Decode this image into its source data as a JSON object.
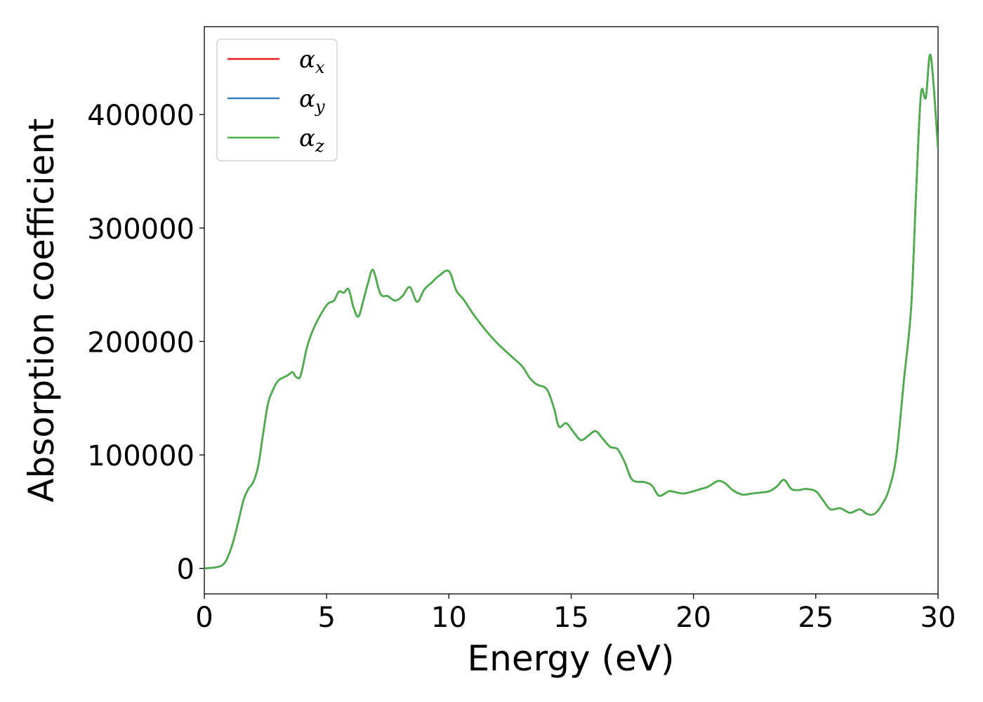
{
  "chart_data": {
    "type": "line",
    "xlabel": "Energy (eV)",
    "ylabel": "Absorption coefficient",
    "xlim": [
      0,
      30
    ],
    "ylim": [
      -22500,
      477500
    ],
    "xticks": [
      0,
      5,
      10,
      15,
      20,
      25,
      30
    ],
    "yticks": [
      0,
      100000,
      200000,
      300000,
      400000
    ],
    "xtick_labels": [
      "0",
      "5",
      "10",
      "15",
      "20",
      "25",
      "30"
    ],
    "ytick_labels": [
      "0",
      "100000",
      "200000",
      "300000",
      "400000"
    ],
    "grid": false,
    "legend_position": "top-left",
    "x": [
      0,
      0.5,
      0.8,
      1.0,
      1.2,
      1.4,
      1.6,
      1.8,
      2.0,
      2.2,
      2.4,
      2.6,
      2.8,
      3.0,
      3.2,
      3.4,
      3.6,
      3.7,
      3.8,
      3.9,
      4.0,
      4.2,
      4.5,
      5.0,
      5.3,
      5.5,
      5.7,
      5.9,
      6.1,
      6.3,
      6.5,
      6.7,
      6.9,
      7.2,
      7.5,
      7.8,
      8.1,
      8.4,
      8.7,
      9.0,
      9.3,
      9.6,
      10.0,
      10.3,
      10.6,
      11.0,
      11.5,
      12.0,
      12.5,
      13.0,
      13.3,
      13.6,
      14.0,
      14.3,
      14.5,
      14.8,
      15.1,
      15.4,
      15.7,
      16.0,
      16.3,
      16.6,
      16.9,
      17.2,
      17.5,
      18.0,
      18.3,
      18.6,
      19.0,
      19.3,
      19.6,
      20.0,
      20.3,
      20.6,
      21.0,
      21.3,
      21.6,
      22.0,
      22.4,
      22.8,
      23.1,
      23.4,
      23.7,
      24.0,
      24.3,
      24.6,
      25.0,
      25.3,
      25.6,
      26.0,
      26.4,
      26.8,
      27.1,
      27.4,
      27.7,
      28.0,
      28.3,
      28.6,
      28.9,
      29.1,
      29.3,
      29.5,
      29.7,
      30.0
    ],
    "series": [
      {
        "name": "αx",
        "color": "#e41a1c",
        "values": [
          0,
          1000,
          4000,
          12000,
          25000,
          42000,
          60000,
          70000,
          76000,
          90000,
          118000,
          145000,
          157000,
          165000,
          168000,
          170000,
          173000,
          170000,
          168000,
          168000,
          175000,
          195000,
          213000,
          232000,
          236000,
          244000,
          243000,
          246000,
          230000,
          222000,
          236000,
          252000,
          263000,
          242000,
          240000,
          236000,
          240000,
          248000,
          235000,
          246000,
          252000,
          258000,
          262000,
          245000,
          237000,
          224000,
          210000,
          198000,
          188000,
          178000,
          168000,
          162000,
          158000,
          141000,
          125000,
          128000,
          120000,
          113000,
          117000,
          121000,
          114000,
          107000,
          105000,
          93000,
          78000,
          76000,
          73000,
          64000,
          68000,
          67000,
          66000,
          68000,
          70000,
          72000,
          77000,
          75000,
          69000,
          65000,
          66000,
          67000,
          68000,
          72000,
          78000,
          70000,
          69000,
          70000,
          68000,
          60000,
          52000,
          53000,
          49000,
          52000,
          48000,
          48000,
          56000,
          70000,
          100000,
          165000,
          230000,
          330000,
          418000,
          415000,
          452000,
          370000
        ]
      },
      {
        "name": "αy",
        "color": "#377eb8",
        "values": [
          0,
          1000,
          4000,
          12000,
          25000,
          42000,
          60000,
          70000,
          76000,
          90000,
          118000,
          145000,
          157000,
          165000,
          168000,
          170000,
          173000,
          170000,
          168000,
          168000,
          175000,
          195000,
          213000,
          232000,
          236000,
          244000,
          243000,
          246000,
          230000,
          222000,
          236000,
          252000,
          263000,
          242000,
          240000,
          236000,
          240000,
          248000,
          235000,
          246000,
          252000,
          258000,
          262000,
          245000,
          237000,
          224000,
          210000,
          198000,
          188000,
          178000,
          168000,
          162000,
          158000,
          141000,
          125000,
          128000,
          120000,
          113000,
          117000,
          121000,
          114000,
          107000,
          105000,
          93000,
          78000,
          76000,
          73000,
          64000,
          68000,
          67000,
          66000,
          68000,
          70000,
          72000,
          77000,
          75000,
          69000,
          65000,
          66000,
          67000,
          68000,
          72000,
          78000,
          70000,
          69000,
          70000,
          68000,
          60000,
          52000,
          53000,
          49000,
          52000,
          48000,
          48000,
          56000,
          70000,
          100000,
          165000,
          230000,
          330000,
          418000,
          415000,
          452000,
          370000
        ]
      },
      {
        "name": "αz",
        "color": "#4daf4a",
        "values": [
          0,
          1000,
          4000,
          12000,
          25000,
          42000,
          60000,
          70000,
          76000,
          90000,
          118000,
          145000,
          157000,
          165000,
          168000,
          170000,
          173000,
          170000,
          168000,
          168000,
          175000,
          195000,
          213000,
          232000,
          236000,
          244000,
          243000,
          246000,
          230000,
          222000,
          236000,
          252000,
          263000,
          242000,
          240000,
          236000,
          240000,
          248000,
          235000,
          246000,
          252000,
          258000,
          262000,
          245000,
          237000,
          224000,
          210000,
          198000,
          188000,
          178000,
          168000,
          162000,
          158000,
          141000,
          125000,
          128000,
          120000,
          113000,
          117000,
          121000,
          114000,
          107000,
          105000,
          93000,
          78000,
          76000,
          73000,
          64000,
          68000,
          67000,
          66000,
          68000,
          70000,
          72000,
          77000,
          75000,
          69000,
          65000,
          66000,
          67000,
          68000,
          72000,
          78000,
          70000,
          69000,
          70000,
          68000,
          60000,
          52000,
          53000,
          49000,
          52000,
          48000,
          48000,
          56000,
          70000,
          100000,
          165000,
          230000,
          330000,
          418000,
          415000,
          452000,
          370000
        ]
      }
    ],
    "legend": [
      {
        "symbol": "α",
        "subscript": "x",
        "color": "#e41a1c"
      },
      {
        "symbol": "α",
        "subscript": "y",
        "color": "#377eb8"
      },
      {
        "symbol": "α",
        "subscript": "z",
        "color": "#4daf4a"
      }
    ]
  }
}
